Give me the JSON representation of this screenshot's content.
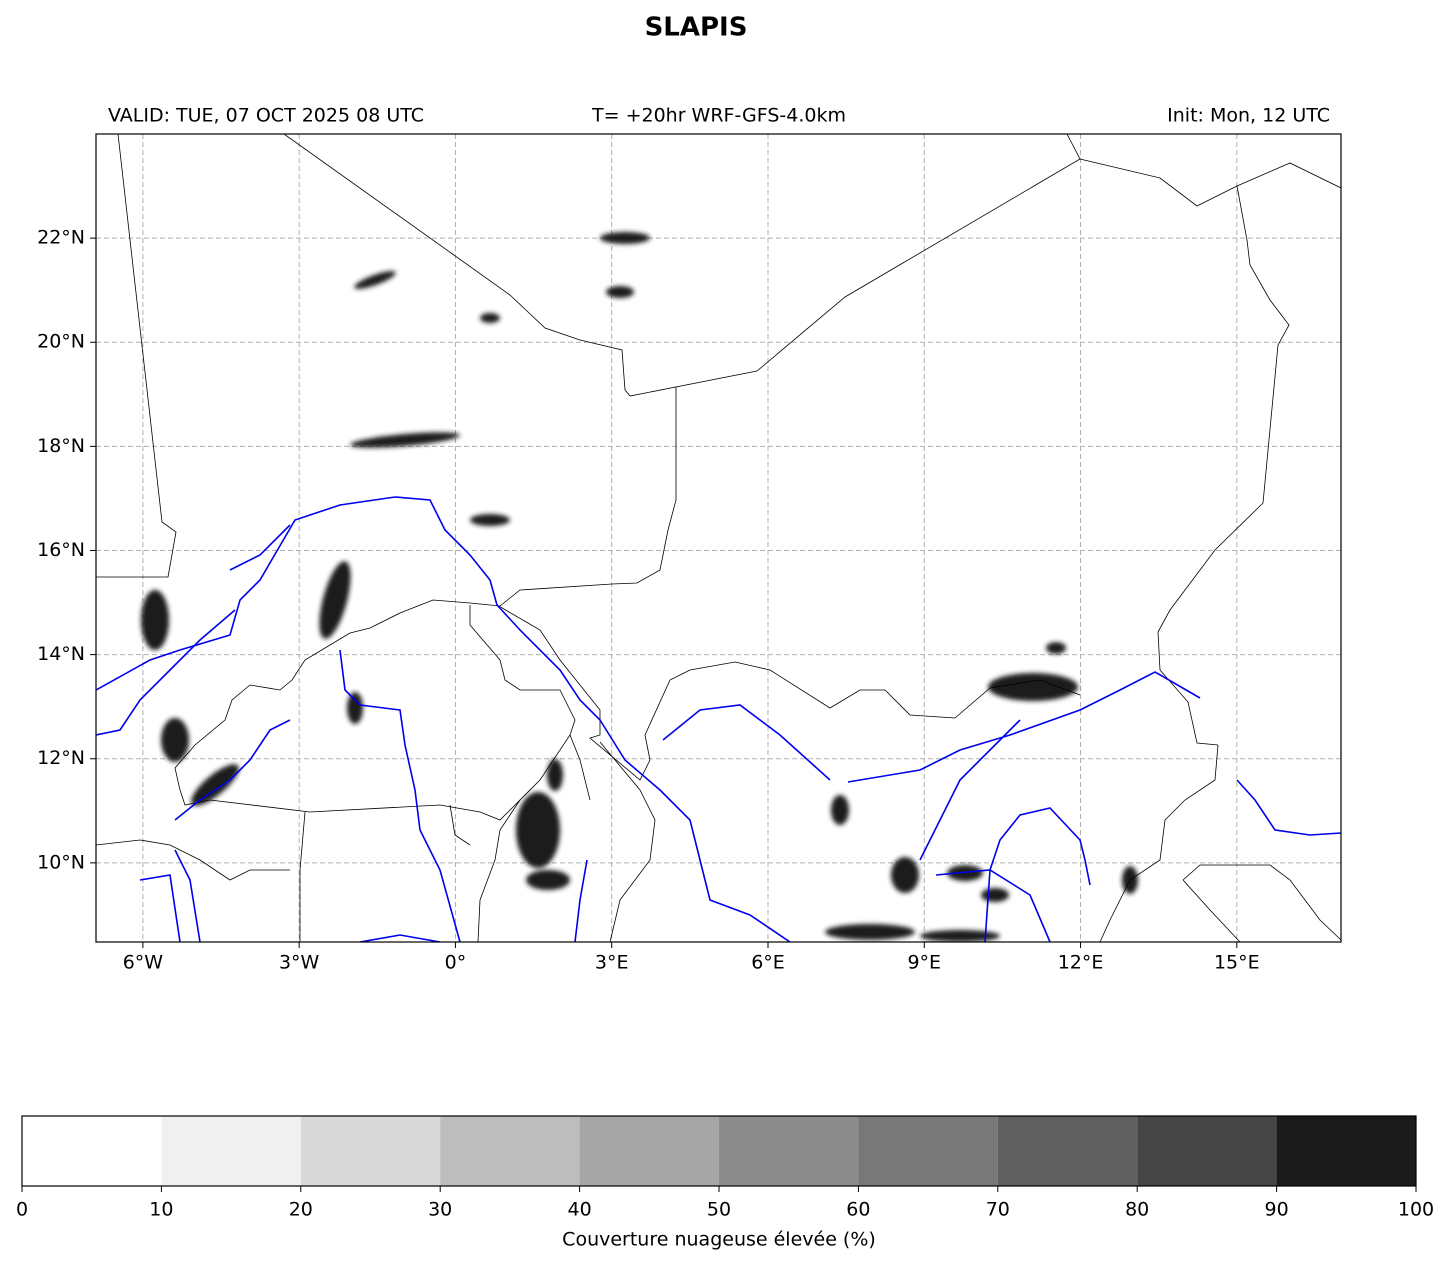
{
  "map": {
    "title": "SLAPIS",
    "valid": "VALID: TUE, 07 OCT 2025 08 UTC",
    "forecast": "T= +20hr WRF-GFS-4.0km",
    "init": "Init: Mon, 12 UTC",
    "xlim": [
      -6.9,
      17
    ],
    "ylim": [
      8.48,
      24
    ],
    "xticks": [
      {
        "value": -6,
        "label": "6°W"
      },
      {
        "value": -3,
        "label": "3°W"
      },
      {
        "value": 0,
        "label": "0°"
      },
      {
        "value": 3,
        "label": "3°E"
      },
      {
        "value": 6,
        "label": "6°E"
      },
      {
        "value": 9,
        "label": "9°E"
      },
      {
        "value": 12,
        "label": "12°E"
      },
      {
        "value": 15,
        "label": "15°E"
      }
    ],
    "yticks": [
      {
        "value": 10,
        "label": "10°N"
      },
      {
        "value": 12,
        "label": "12°N"
      },
      {
        "value": 14,
        "label": "14°N"
      },
      {
        "value": 16,
        "label": "16°N"
      },
      {
        "value": 18,
        "label": "18°N"
      },
      {
        "value": 20,
        "label": "20°N"
      },
      {
        "value": 22,
        "label": "22°N"
      }
    ],
    "grid": true
  },
  "colorbar": {
    "label": "Couverture nuageuse élevée (%)",
    "ticks": [
      0,
      10,
      20,
      30,
      40,
      50,
      60,
      70,
      80,
      90,
      100
    ],
    "colors": [
      "#ffffff",
      "#f0f0f0",
      "#d9d9d9",
      "#bdbdbd",
      "#a6a6a6",
      "#8c8c8c",
      "#787878",
      "#606060",
      "#464646",
      "#1a1a1a"
    ]
  }
}
